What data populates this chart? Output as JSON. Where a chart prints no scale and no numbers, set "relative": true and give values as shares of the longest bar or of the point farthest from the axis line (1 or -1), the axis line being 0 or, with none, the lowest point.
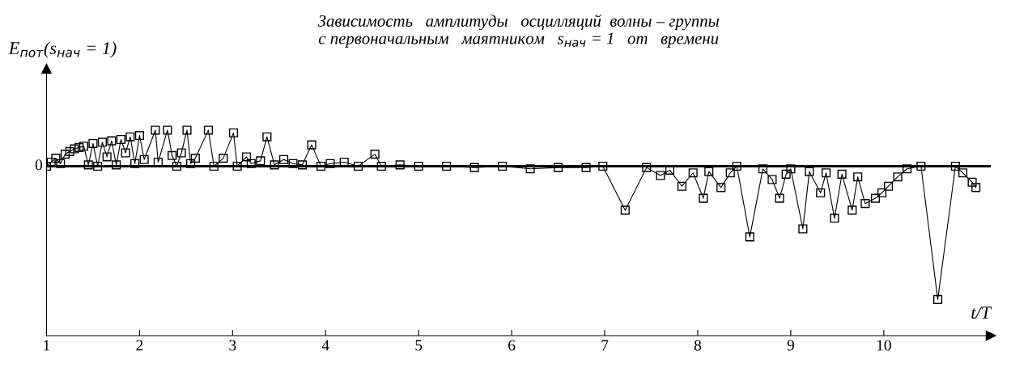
{
  "chart_data": {
    "type": "line",
    "relative": true,
    "title": "Зависимость   амплитуды   осцилляций  волны – группы\nс первоначальным   маятником   s$_{нач}$ = 1   от   времени",
    "xlabel": "t/T",
    "ylabel": "E$_{пот}$(s$_{нач}$ = 1)",
    "xlim": [
      1,
      11.15
    ],
    "xticks": [
      1,
      2,
      3,
      4,
      5,
      6,
      7,
      8,
      9,
      10
    ],
    "marker": "square",
    "line_style": "solid",
    "grid": false,
    "legend": false,
    "ref_lines": [
      {
        "axis": "y",
        "value": 0,
        "label": "0",
        "color": "#000000"
      }
    ],
    "series": [
      {
        "color": "#000000",
        "x": [
          1.0,
          1.05,
          1.1,
          1.15,
          1.2,
          1.25,
          1.3,
          1.35,
          1.4,
          1.45,
          1.5,
          1.55,
          1.6,
          1.65,
          1.7,
          1.75,
          1.8,
          1.85,
          1.9,
          1.95,
          2.0,
          2.05,
          2.17,
          2.2,
          2.3,
          2.35,
          2.4,
          2.45,
          2.51,
          2.55,
          2.6,
          2.74,
          2.8,
          2.9,
          3.01,
          3.05,
          3.15,
          3.2,
          3.3,
          3.37,
          3.45,
          3.55,
          3.65,
          3.75,
          3.85,
          3.95,
          4.05,
          4.2,
          4.35,
          4.53,
          4.6,
          4.8,
          5.0,
          5.3,
          5.6,
          5.9,
          6.2,
          6.5,
          6.8,
          6.98,
          7.22,
          7.45,
          7.6,
          7.7,
          7.83,
          7.95,
          8.06,
          8.12,
          8.25,
          8.35,
          8.42,
          8.56,
          8.7,
          8.8,
          8.88,
          8.95,
          9.0,
          9.13,
          9.2,
          9.32,
          9.38,
          9.47,
          9.55,
          9.66,
          9.72,
          9.8,
          9.91,
          9.98,
          10.05,
          10.15,
          10.25,
          10.4,
          10.58,
          10.77,
          10.85,
          10.95,
          10.99
        ],
        "values": [
          0,
          0.03,
          0.06,
          0.02,
          0.09,
          0.11,
          0.13,
          0.14,
          0.15,
          0.01,
          0.17,
          0.0,
          0.18,
          0.07,
          0.19,
          0.01,
          0.2,
          0.1,
          0.22,
          0.02,
          0.23,
          0.05,
          0.27,
          0.03,
          0.27,
          0.08,
          0.0,
          0.1,
          0.27,
          0.02,
          0.06,
          0.27,
          0.0,
          0.06,
          0.25,
          0.0,
          0.07,
          0.02,
          0.04,
          0.22,
          0.01,
          0.05,
          0.02,
          0.01,
          0.16,
          0.0,
          0.02,
          0.03,
          0.0,
          0.09,
          0.0,
          0.01,
          0.0,
          0.0,
          -0.01,
          0.0,
          -0.02,
          -0.01,
          -0.01,
          0.0,
          -0.33,
          -0.01,
          -0.07,
          -0.03,
          -0.15,
          -0.05,
          -0.24,
          -0.04,
          -0.16,
          -0.05,
          0.0,
          -0.53,
          -0.02,
          -0.1,
          -0.24,
          -0.06,
          -0.02,
          -0.47,
          -0.04,
          -0.2,
          -0.05,
          -0.39,
          -0.06,
          -0.33,
          -0.08,
          -0.28,
          -0.24,
          -0.2,
          -0.15,
          -0.08,
          -0.02,
          0.0,
          -1.0,
          0.0,
          -0.05,
          -0.12,
          -0.16
        ]
      }
    ]
  }
}
